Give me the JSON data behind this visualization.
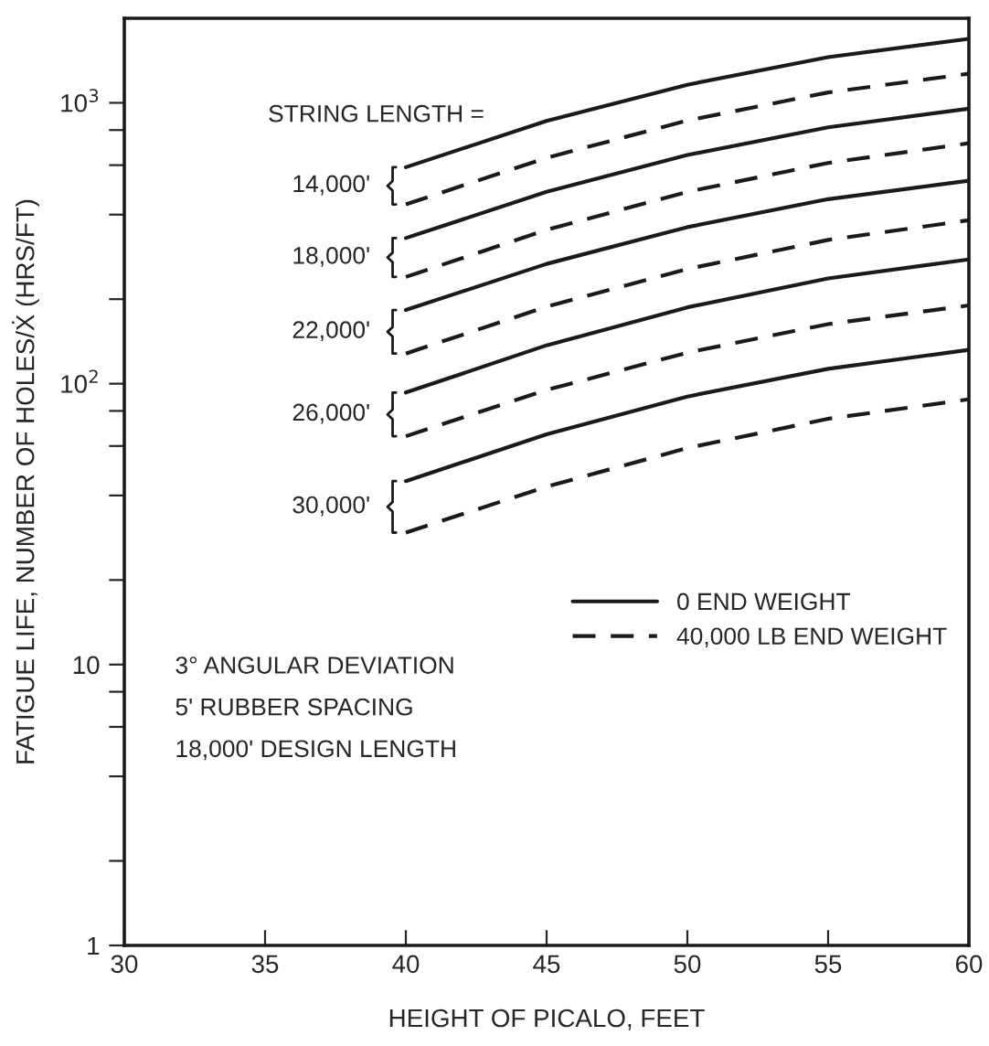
{
  "chart_data": {
    "type": "line",
    "xlabel": "HEIGHT OF PICALO, FEET",
    "ylabel": "FATIGUE LIFE, NUMBER OF HOLES/Ẋ (HRS/FT)",
    "log": "y",
    "xlim": [
      30,
      60
    ],
    "xticks": [
      30,
      35,
      40,
      45,
      50,
      55,
      60
    ],
    "ylim": [
      1,
      2000
    ],
    "yticks": [
      1,
      {
        "value": 2,
        "label": null
      },
      {
        "value": 4,
        "label": null
      },
      {
        "value": 6,
        "label": null
      },
      {
        "value": 8,
        "label": null
      },
      10,
      {
        "value": 20,
        "label": null
      },
      {
        "value": 40,
        "label": null
      },
      {
        "value": 60,
        "label": null
      },
      {
        "value": 80,
        "label": null
      },
      {
        "value": 100,
        "label": "10$^{2}$"
      },
      {
        "value": 200,
        "label": null
      },
      {
        "value": 400,
        "label": null
      },
      {
        "value": 600,
        "label": null
      },
      {
        "value": 800,
        "label": null
      },
      {
        "value": 1000,
        "label": "10$^{3}$"
      }
    ],
    "grid": false,
    "legend": "center right",
    "marker": "none",
    "x": [
      40,
      45,
      50,
      55,
      60
    ],
    "series": [
      {
        "name": "0 END WEIGHT",
        "color": "#1a1a1a",
        "line_style": "solid",
        "values": [
          590,
          862,
          1160,
          1455,
          1690
        ]
      },
      {
        "name": "40,000 LB END WEIGHT",
        "color": "#1a1a1a",
        "line_style": "dashed",
        "values": [
          435,
          637,
          865,
          1089,
          1270
        ]
      },
      {
        "color": "#1a1a1a",
        "line_style": "solid",
        "values": [
          330,
          482,
          652,
          818,
          953
        ]
      },
      {
        "color": "#1a1a1a",
        "line_style": "dashed",
        "values": [
          240,
          353,
          482,
          611,
          718
        ]
      },
      {
        "color": "#1a1a1a",
        "line_style": "solid",
        "values": [
          183,
          267,
          361,
          454,
          528
        ]
      },
      {
        "color": "#1a1a1a",
        "line_style": "dashed",
        "values": [
          128,
          188,
          256,
          325,
          382
        ]
      },
      {
        "color": "#1a1a1a",
        "line_style": "solid",
        "values": [
          93,
          137,
          187,
          237,
          277
        ]
      },
      {
        "color": "#1a1a1a",
        "line_style": "dashed",
        "values": [
          65,
          95,
          129,
          163,
          190
        ]
      },
      {
        "color": "#1a1a1a",
        "line_style": "solid",
        "values": [
          45,
          66,
          90,
          113,
          132
        ]
      },
      {
        "color": "#1a1a1a",
        "line_style": "dashed",
        "values": [
          29.5,
          43,
          59,
          75,
          88
        ]
      }
    ],
    "annotations": [
      "STRING LENGTH =",
      "14,000'",
      "18,000'",
      "22,000'",
      "26,000'",
      "30,000'",
      "3° ANGULAR DEVIATION",
      "5' RUBBER SPACING",
      "18,000' DESIGN LENGTH"
    ]
  }
}
